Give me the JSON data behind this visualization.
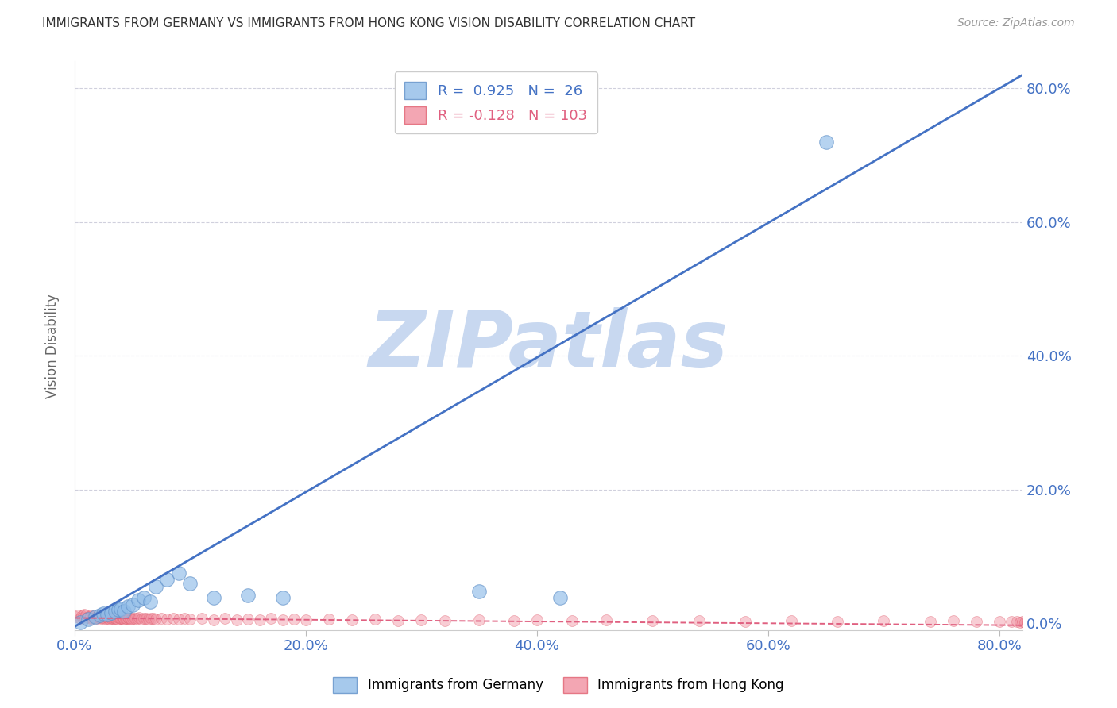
{
  "title": "IMMIGRANTS FROM GERMANY VS IMMIGRANTS FROM HONG KONG VISION DISABILITY CORRELATION CHART",
  "source": "Source: ZipAtlas.com",
  "ylabel": "Vision Disability",
  "ytick_values": [
    0.0,
    0.2,
    0.4,
    0.6,
    0.8
  ],
  "xtick_values": [
    0.0,
    0.2,
    0.4,
    0.6,
    0.8
  ],
  "xlim": [
    0.0,
    0.82
  ],
  "ylim": [
    -0.01,
    0.84
  ],
  "R_germany": 0.925,
  "N_germany": 26,
  "R_hk": -0.128,
  "N_hk": 103,
  "watermark": "ZIPatlas",
  "watermark_color": "#c8d8f0",
  "background_color": "#ffffff",
  "scatter_color_germany": "#90bce8",
  "scatter_edge_germany": "#6090c8",
  "scatter_color_hk": "#f090a0",
  "scatter_edge_hk": "#e06070",
  "grid_color": "#d0d0dd",
  "trend_color_germany": "#4472c4",
  "trend_color_hk": "#e06080",
  "tick_color": "#4472c4",
  "ylabel_color": "#666666",
  "title_color": "#333333",
  "source_color": "#999999",
  "legend_label_germany": "Immigrants from Germany",
  "legend_label_hk": "Immigrants from Hong Kong",
  "trend_germany_x0": 0.0,
  "trend_germany_y0": -0.005,
  "trend_germany_x1": 0.82,
  "trend_germany_y1": 0.82,
  "trend_hk_x0": 0.0,
  "trend_hk_y0": 0.008,
  "trend_hk_x1": 0.82,
  "trend_hk_y1": -0.003,
  "germany_scatter_x": [
    0.005,
    0.012,
    0.018,
    0.022,
    0.025,
    0.028,
    0.032,
    0.035,
    0.038,
    0.04,
    0.043,
    0.046,
    0.05,
    0.055,
    0.06,
    0.065,
    0.07,
    0.08,
    0.09,
    0.1,
    0.12,
    0.15,
    0.18,
    0.35,
    0.42,
    0.65
  ],
  "germany_scatter_y": [
    0.002,
    0.006,
    0.01,
    0.012,
    0.015,
    0.013,
    0.016,
    0.018,
    0.02,
    0.022,
    0.018,
    0.025,
    0.028,
    0.035,
    0.038,
    0.032,
    0.055,
    0.065,
    0.075,
    0.06,
    0.038,
    0.042,
    0.038,
    0.048,
    0.038,
    0.72
  ],
  "hk_scatter_x": [
    0.001,
    0.003,
    0.005,
    0.006,
    0.007,
    0.008,
    0.009,
    0.01,
    0.011,
    0.012,
    0.013,
    0.014,
    0.015,
    0.016,
    0.017,
    0.018,
    0.019,
    0.02,
    0.021,
    0.022,
    0.023,
    0.024,
    0.025,
    0.026,
    0.027,
    0.028,
    0.029,
    0.03,
    0.031,
    0.032,
    0.033,
    0.034,
    0.035,
    0.036,
    0.037,
    0.038,
    0.039,
    0.04,
    0.041,
    0.042,
    0.043,
    0.044,
    0.045,
    0.046,
    0.047,
    0.048,
    0.049,
    0.05,
    0.052,
    0.054,
    0.056,
    0.058,
    0.06,
    0.062,
    0.064,
    0.066,
    0.068,
    0.07,
    0.075,
    0.08,
    0.085,
    0.09,
    0.095,
    0.1,
    0.11,
    0.12,
    0.13,
    0.14,
    0.15,
    0.16,
    0.17,
    0.18,
    0.19,
    0.2,
    0.22,
    0.24,
    0.26,
    0.28,
    0.3,
    0.32,
    0.35,
    0.38,
    0.4,
    0.43,
    0.46,
    0.5,
    0.54,
    0.58,
    0.62,
    0.66,
    0.7,
    0.74,
    0.76,
    0.78,
    0.8,
    0.81,
    0.815,
    0.818,
    0.82,
    0.822,
    0.824,
    0.825,
    0.826
  ],
  "hk_scatter_y": [
    0.01,
    0.012,
    0.008,
    0.011,
    0.009,
    0.013,
    0.007,
    0.012,
    0.009,
    0.01,
    0.008,
    0.011,
    0.007,
    0.01,
    0.009,
    0.012,
    0.008,
    0.01,
    0.009,
    0.011,
    0.007,
    0.009,
    0.008,
    0.01,
    0.007,
    0.009,
    0.008,
    0.006,
    0.009,
    0.007,
    0.008,
    0.009,
    0.007,
    0.008,
    0.006,
    0.009,
    0.007,
    0.008,
    0.007,
    0.009,
    0.006,
    0.008,
    0.007,
    0.009,
    0.007,
    0.008,
    0.006,
    0.007,
    0.008,
    0.007,
    0.009,
    0.006,
    0.007,
    0.008,
    0.006,
    0.007,
    0.008,
    0.006,
    0.007,
    0.006,
    0.008,
    0.006,
    0.007,
    0.006,
    0.007,
    0.005,
    0.007,
    0.005,
    0.006,
    0.005,
    0.007,
    0.005,
    0.006,
    0.005,
    0.006,
    0.005,
    0.006,
    0.004,
    0.005,
    0.004,
    0.005,
    0.004,
    0.005,
    0.004,
    0.005,
    0.004,
    0.004,
    0.003,
    0.004,
    0.003,
    0.004,
    0.003,
    0.004,
    0.003,
    0.003,
    0.003,
    0.003,
    0.002,
    0.003,
    0.002,
    0.003,
    0.002,
    0.002
  ]
}
